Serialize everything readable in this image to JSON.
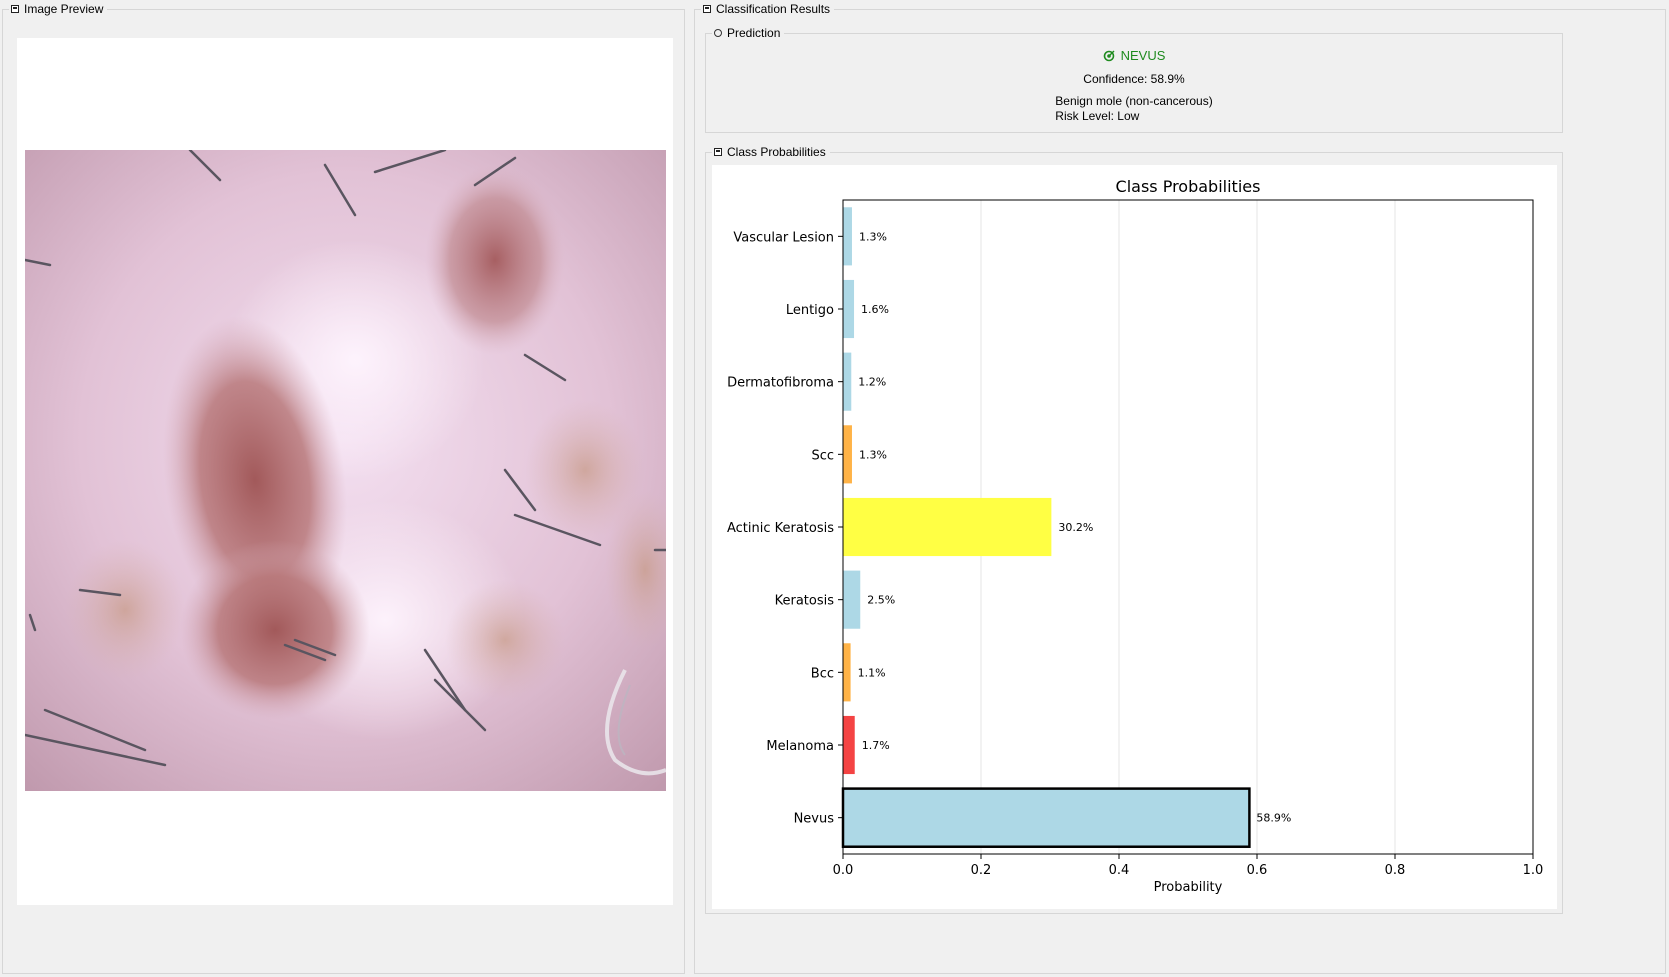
{
  "image_preview": {
    "title": "Image Preview",
    "image_icon": "image-icon",
    "image_description_icon": "dermoscopy-image"
  },
  "results": {
    "title": "Classification Results",
    "prediction": {
      "title": "Prediction",
      "label": "NEVUS",
      "label_icon": "target-icon",
      "label_color": "#1f8b1f",
      "confidence": "Confidence: 58.9%",
      "description": "Benign mole (non-cancerous)",
      "risk": "Risk Level: Low"
    },
    "probs_title": "Class Probabilities"
  },
  "chart_data": {
    "type": "bar",
    "orientation": "horizontal",
    "title": "Class Probabilities",
    "xlabel": "Probability",
    "ylabel": "",
    "xlim": [
      0,
      1
    ],
    "xticks": [
      "0.0",
      "0.2",
      "0.4",
      "0.6",
      "0.8",
      "1.0"
    ],
    "grid": "vertical",
    "categories": [
      "Nevus",
      "Melanoma",
      "Bcc",
      "Keratosis",
      "Actinic Keratosis",
      "Scc",
      "Dermatofibroma",
      "Lentigo",
      "Vascular Lesion"
    ],
    "values": [
      0.589,
      0.017,
      0.011,
      0.025,
      0.302,
      0.013,
      0.012,
      0.016,
      0.013
    ],
    "value_labels": [
      "58.9%",
      "1.7%",
      "1.1%",
      "2.5%",
      "30.2%",
      "1.3%",
      "1.2%",
      "1.6%",
      "1.3%"
    ],
    "colors": [
      "#add8e6",
      "#f44343",
      "#ffb347",
      "#add8e6",
      "#ffff44",
      "#ffb347",
      "#add8e6",
      "#add8e6",
      "#add8e6"
    ],
    "highlighted": "Nevus"
  }
}
